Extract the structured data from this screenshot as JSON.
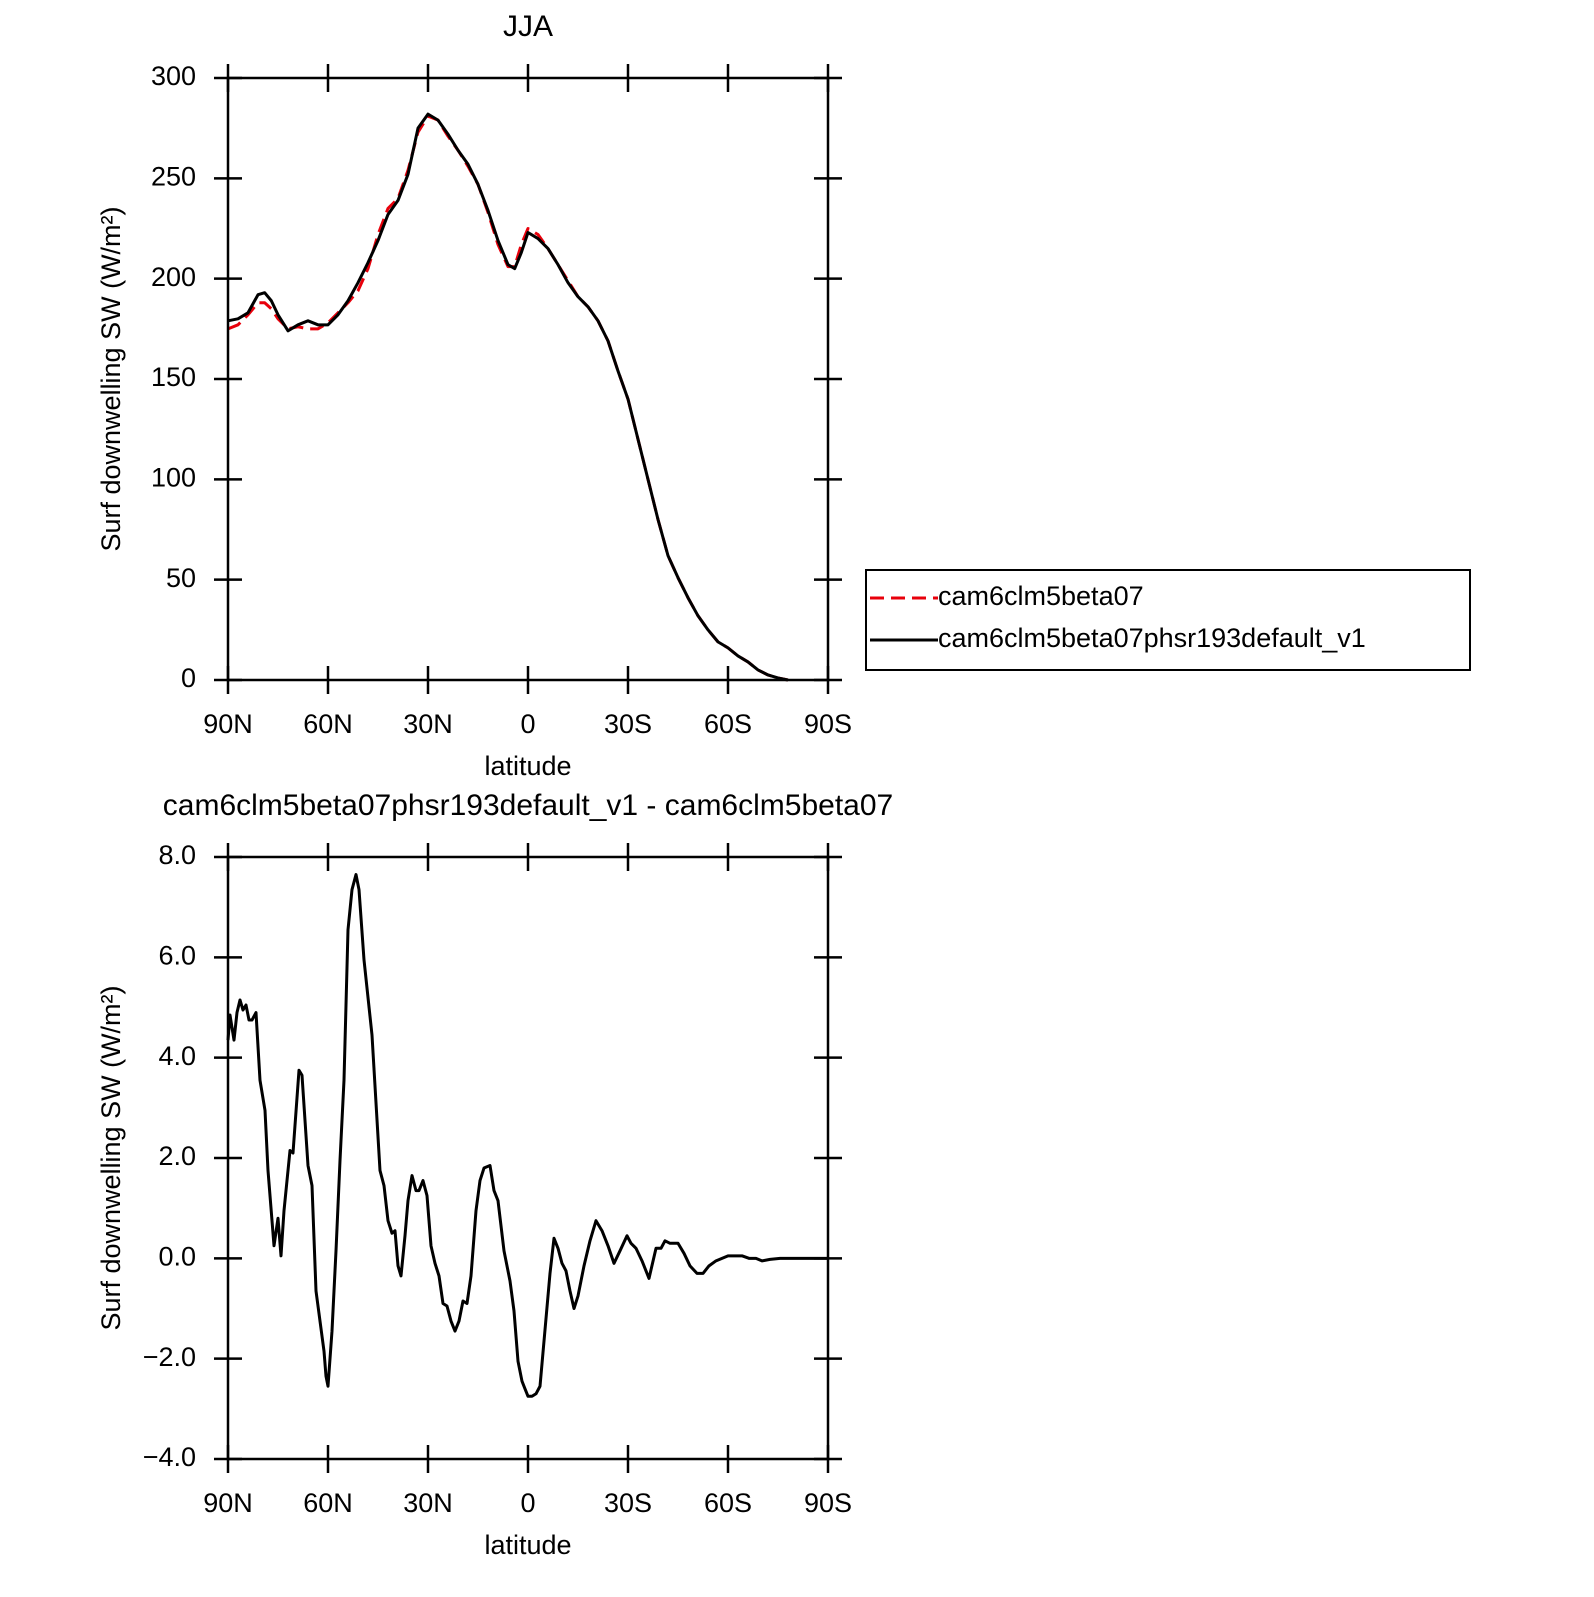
{
  "chart_data": [
    {
      "type": "line",
      "title": "JJA",
      "x_label": "latitude",
      "y_label": "Surf downwelling SW (W/m²)",
      "xlim": [
        90,
        -90
      ],
      "xticks": [
        {
          "value": 90,
          "label": "90N"
        },
        {
          "value": 60,
          "label": "60N"
        },
        {
          "value": 30,
          "label": "30N"
        },
        0,
        {
          "value": -30,
          "label": "30S"
        },
        {
          "value": -60,
          "label": "60S"
        },
        {
          "value": -90,
          "label": "90S"
        }
      ],
      "ylim": [
        0,
        300
      ],
      "yticks": [
        0,
        50,
        100,
        150,
        200,
        250,
        300
      ],
      "legend_position": "right",
      "x": [
        90,
        87,
        84,
        81,
        79,
        77,
        75,
        72,
        69,
        66,
        63,
        60,
        57,
        54,
        51,
        48,
        45,
        42,
        39,
        36,
        33,
        30,
        27,
        24,
        21,
        18,
        15,
        12,
        9,
        6,
        4,
        2,
        0,
        -3,
        -6,
        -9,
        -12,
        -15,
        -18,
        -21,
        -24,
        -27,
        -30,
        -33,
        -36,
        -39,
        -42,
        -45,
        -48,
        -51,
        -54,
        -57,
        -60,
        -63,
        -66,
        -69,
        -72,
        -75,
        -78
      ],
      "series": [
        {
          "name": "cam6clm5beta07",
          "color": "#e8000b",
          "line_style": "dashed",
          "values": [
            175,
            177,
            182,
            188,
            188,
            185,
            180,
            175,
            176,
            175,
            175,
            178,
            183,
            188,
            194,
            205,
            222,
            235,
            240,
            254,
            273,
            281,
            279,
            271,
            264,
            256,
            247,
            233,
            217,
            206,
            206,
            217,
            225,
            222,
            215,
            207,
            199,
            191,
            186,
            179,
            169,
            154,
            140,
            120,
            100,
            80,
            62,
            51,
            41,
            32,
            25,
            19,
            16,
            12,
            9,
            5,
            2.5,
            1,
            0
          ]
        },
        {
          "name": "cam6clm5beta07phsr193default_v1",
          "color": "#000000",
          "line_style": "solid",
          "values": [
            179,
            180,
            183,
            192,
            193,
            189,
            182,
            174,
            177,
            179,
            177,
            177,
            182,
            189,
            198,
            208,
            219,
            232,
            239,
            252,
            275,
            282,
            279,
            272,
            264,
            257,
            247,
            234,
            219,
            207,
            205,
            213,
            223,
            220,
            215,
            207,
            198,
            191,
            186,
            179,
            169,
            154,
            140,
            120,
            100,
            80,
            62,
            51,
            41,
            32,
            25,
            19,
            16,
            12,
            9,
            5,
            2.5,
            1,
            0
          ]
        }
      ]
    },
    {
      "type": "line",
      "title": "cam6clm5beta07phsr193default_v1 - cam6clm5beta07",
      "x_label": "latitude",
      "y_label": "Surf downwelling SW (W/m²)",
      "xlim": [
        90,
        -90
      ],
      "xticks": [
        {
          "value": 90,
          "label": "90N"
        },
        {
          "value": 60,
          "label": "60N"
        },
        {
          "value": 30,
          "label": "30N"
        },
        0,
        {
          "value": -30,
          "label": "30S"
        },
        {
          "value": -60,
          "label": "60S"
        },
        {
          "value": -90,
          "label": "90S"
        }
      ],
      "ylim": [
        -4,
        8
      ],
      "yticks": [
        {
          "value": -4,
          "label": "−4.0"
        },
        {
          "value": -2,
          "label": "−2.0"
        },
        {
          "value": 0,
          "label": "0.0"
        },
        {
          "value": 2,
          "label": "2.0"
        },
        {
          "value": 4,
          "label": "4.0"
        },
        {
          "value": 6,
          "label": "6.0"
        },
        {
          "value": 8,
          "label": "8.0"
        }
      ],
      "color": "#000000",
      "x": [
        90,
        89.4,
        88.2,
        87.3,
        86.4,
        85.5,
        84.6,
        83.7,
        82.8,
        81.6,
        80.4,
        78.9,
        78,
        76.2,
        75,
        74.1,
        73.2,
        71.4,
        70.5,
        68.7,
        67.8,
        66,
        64.8,
        63.6,
        62.4,
        61.2,
        60.6,
        60,
        58.8,
        57.6,
        56.4,
        55.2,
        54,
        52.8,
        51.6,
        50.7,
        49.2,
        46.8,
        44.4,
        43.2,
        42,
        40.8,
        39.9,
        39,
        38.1,
        36.9,
        36,
        34.8,
        33.6,
        32.7,
        31.5,
        30.3,
        29.1,
        27.9,
        26.7,
        25.5,
        24.3,
        23.1,
        21.9,
        20.7,
        19.5,
        18.3,
        17.1,
        15.6,
        14.4,
        13.2,
        11.4,
        10.2,
        9,
        7.2,
        5.4,
        4.2,
        3,
        1.8,
        1.2,
        0,
        -1.2,
        -2.4,
        -3.6,
        -4.8,
        -6.6,
        -7.8,
        -9,
        -10.2,
        -11.4,
        -12.6,
        -13.8,
        -15,
        -16.8,
        -18.6,
        -20.4,
        -22.2,
        -24,
        -25.8,
        -27.6,
        -29.7,
        -30.9,
        -32.4,
        -34.2,
        -36.3,
        -38.4,
        -39.9,
        -41.1,
        -42.6,
        -45,
        -46.8,
        -48.6,
        -50.7,
        -52.5,
        -54.3,
        -56.4,
        -58.2,
        -60,
        -62.1,
        -64.2,
        -66.3,
        -68.4,
        -70.2,
        -72.6,
        -75.6,
        -81.6,
        -90
      ],
      "values": [
        4.35,
        4.85,
        4.35,
        4.9,
        5.15,
        4.95,
        5.05,
        4.75,
        4.75,
        4.9,
        3.55,
        2.95,
        1.75,
        0.25,
        0.8,
        0.05,
        0.95,
        2.15,
        2.1,
        3.75,
        3.65,
        1.85,
        1.45,
        -0.65,
        -1.25,
        -1.85,
        -2.35,
        -2.55,
        -1.45,
        0.15,
        1.95,
        3.55,
        6.55,
        7.35,
        7.65,
        7.35,
        5.95,
        4.45,
        1.75,
        1.45,
        0.75,
        0.5,
        0.55,
        -0.15,
        -0.35,
        0.45,
        1.15,
        1.65,
        1.35,
        1.35,
        1.55,
        1.25,
        0.25,
        -0.1,
        -0.35,
        -0.9,
        -0.95,
        -1.25,
        -1.45,
        -1.25,
        -0.85,
        -0.9,
        -0.35,
        0.95,
        1.55,
        1.8,
        1.85,
        1.35,
        1.15,
        0.15,
        -0.45,
        -1.05,
        -2.05,
        -2.45,
        -2.55,
        -2.75,
        -2.75,
        -2.7,
        -2.55,
        -1.65,
        -0.3,
        0.4,
        0.2,
        -0.1,
        -0.25,
        -0.65,
        -1.0,
        -0.75,
        -0.15,
        0.35,
        0.75,
        0.55,
        0.25,
        -0.1,
        0.15,
        0.45,
        0.3,
        0.2,
        -0.05,
        -0.4,
        0.2,
        0.2,
        0.35,
        0.3,
        0.3,
        0.1,
        -0.15,
        -0.3,
        -0.3,
        -0.15,
        -0.05,
        0,
        0.05,
        0.05,
        0.05,
        0,
        0,
        -0.05,
        -0.02,
        0,
        0,
        0
      ]
    }
  ]
}
